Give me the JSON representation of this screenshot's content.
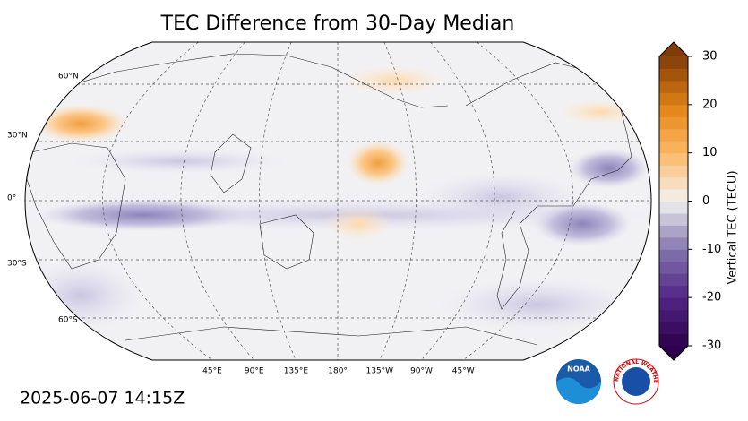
{
  "title": "TEC Difference from 30-Day Median",
  "map": {
    "lat_labels": [
      "60°N",
      "30°N",
      "0°",
      "30°S",
      "60°S"
    ],
    "lon_labels": [
      "45°E",
      "90°E",
      "135°E",
      "180°",
      "135°W",
      "90°W",
      "45°W"
    ]
  },
  "colorbar": {
    "label": "Vertical TEC (TECU)",
    "lim": [
      -30,
      30
    ],
    "ticks": [
      -30,
      -20,
      -10,
      0,
      10,
      20,
      30
    ]
  },
  "timestamp": "2025-06-07 14:15Z",
  "logos": {
    "noaa": "NOAA",
    "nws": "NATIONAL WEATHER SERVICE"
  }
}
